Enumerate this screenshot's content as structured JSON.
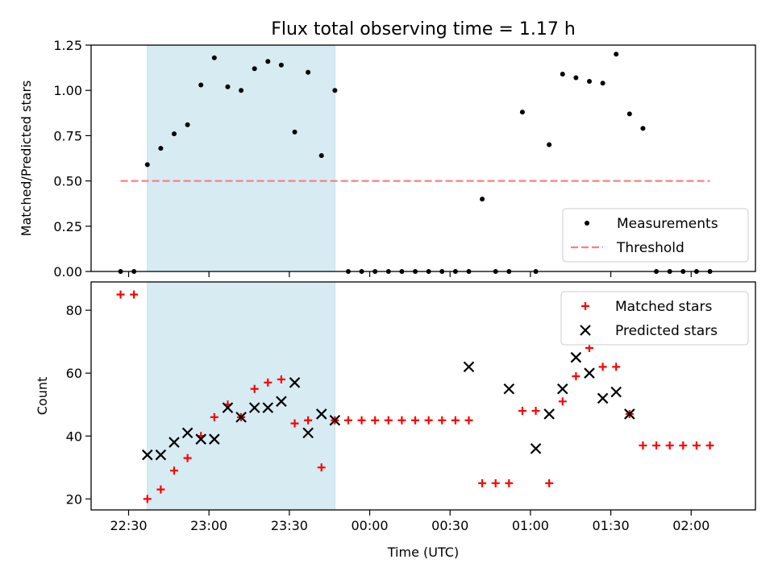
{
  "title": "Flux total observing time = 1.17 h",
  "chart_data": [
    {
      "type": "scatter",
      "panel": "top",
      "ylabel": "Matched/Predicted stars",
      "xlabel": "",
      "xlim": [
        "22:16",
        "02:24"
      ],
      "ylim": [
        0,
        1.25
      ],
      "yticks": [
        "0.00",
        "0.25",
        "0.50",
        "0.75",
        "1.00",
        "1.25"
      ],
      "shaded_interval": [
        "22:37",
        "23:47"
      ],
      "shade_color": "#add8e6",
      "legend": {
        "position": "lower-right",
        "entries": [
          "Measurements",
          "Threshold"
        ]
      },
      "series": [
        {
          "name": "Measurements",
          "marker": "dot",
          "color": "#000000",
          "x": [
            "22:27",
            "22:32",
            "22:37",
            "22:42",
            "22:47",
            "22:52",
            "22:57",
            "23:02",
            "23:07",
            "23:12",
            "23:17",
            "23:22",
            "23:27",
            "23:32",
            "23:37",
            "23:42",
            "23:47",
            "23:52",
            "23:57",
            "00:02",
            "00:07",
            "00:12",
            "00:17",
            "00:22",
            "00:27",
            "00:32",
            "00:37",
            "00:42",
            "00:47",
            "00:52",
            "00:57",
            "01:02",
            "01:07",
            "01:12",
            "01:17",
            "01:22",
            "01:27",
            "01:32",
            "01:37",
            "01:42",
            "01:47",
            "01:52",
            "01:57",
            "02:02",
            "02:07"
          ],
          "y": [
            0,
            0,
            0.59,
            0.68,
            0.76,
            0.81,
            1.03,
            1.18,
            1.02,
            1.0,
            1.12,
            1.16,
            1.14,
            0.77,
            1.1,
            0.64,
            1.0,
            0,
            0,
            0,
            0,
            0,
            0,
            0,
            0,
            0,
            0,
            0.4,
            0,
            0,
            0.88,
            0,
            0.7,
            1.09,
            1.07,
            1.05,
            1.04,
            1.2,
            0.87,
            0.79,
            0,
            0,
            0,
            0,
            0
          ]
        },
        {
          "name": "Threshold",
          "style": "dashed",
          "color": "#ff7f7f",
          "x": [
            "22:27",
            "02:07"
          ],
          "y": [
            0.5,
            0.5
          ]
        }
      ]
    },
    {
      "type": "scatter",
      "panel": "bottom",
      "xlabel": "Time (UTC)",
      "ylabel": "Count",
      "xlim": [
        "22:16",
        "02:24"
      ],
      "ylim": [
        16.5,
        89
      ],
      "yticks": [
        "20",
        "40",
        "60",
        "80"
      ],
      "xticks": [
        "22:30",
        "23:00",
        "23:30",
        "00:00",
        "00:30",
        "01:00",
        "01:30",
        "02:00"
      ],
      "shaded_interval": [
        "22:37",
        "23:47"
      ],
      "shade_color": "#add8e6",
      "legend": {
        "position": "upper-right",
        "entries": [
          "Matched stars",
          "Predicted stars"
        ]
      },
      "series": [
        {
          "name": "Matched stars",
          "marker": "plus",
          "color": "#ff0000",
          "x": [
            "22:27",
            "22:32",
            "22:37",
            "22:42",
            "22:47",
            "22:52",
            "22:57",
            "23:02",
            "23:07",
            "23:12",
            "23:17",
            "23:22",
            "23:27",
            "23:32",
            "23:37",
            "23:42",
            "23:47",
            "23:52",
            "23:57",
            "00:02",
            "00:07",
            "00:12",
            "00:17",
            "00:22",
            "00:27",
            "00:32",
            "00:37",
            "00:42",
            "00:47",
            "00:52",
            "00:57",
            "01:02",
            "01:07",
            "01:12",
            "01:17",
            "01:22",
            "01:27",
            "01:32",
            "01:37",
            "01:42",
            "01:47",
            "01:52",
            "01:57",
            "02:02",
            "02:07"
          ],
          "y": [
            85,
            85,
            20,
            23,
            29,
            33,
            40,
            46,
            50,
            46,
            55,
            57,
            58,
            44,
            45,
            30,
            45,
            45,
            45,
            45,
            45,
            45,
            45,
            45,
            45,
            45,
            45,
            25,
            25,
            25,
            48,
            48,
            25,
            51,
            59,
            68,
            62,
            62,
            47,
            37,
            37,
            37,
            37,
            37,
            37
          ]
        },
        {
          "name": "Predicted stars",
          "marker": "x",
          "color": "#000000",
          "x": [
            "22:37",
            "22:42",
            "22:47",
            "22:52",
            "22:57",
            "23:02",
            "23:07",
            "23:12",
            "23:17",
            "23:22",
            "23:27",
            "23:32",
            "23:37",
            "23:42",
            "23:47",
            "00:37",
            "00:52",
            "01:02",
            "01:07",
            "01:12",
            "01:17",
            "01:22",
            "01:27",
            "01:32",
            "01:37"
          ],
          "y": [
            34,
            34,
            38,
            41,
            39,
            39,
            49,
            46,
            49,
            49,
            51,
            57,
            41,
            47,
            45,
            62,
            55,
            36,
            47,
            55,
            65,
            60,
            52,
            54,
            47
          ]
        }
      ]
    }
  ]
}
